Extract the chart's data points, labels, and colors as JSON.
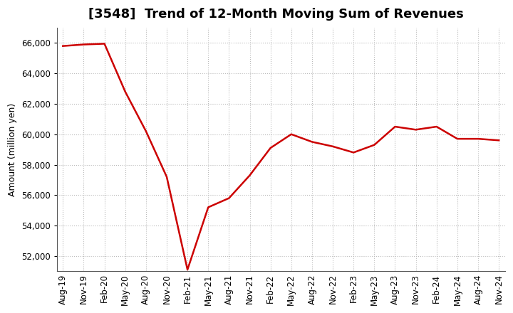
{
  "title": "[3548]  Trend of 12-Month Moving Sum of Revenues",
  "ylabel": "Amount (million yen)",
  "background_color": "#ffffff",
  "plot_bg_color": "#ffffff",
  "line_color": "#cc0000",
  "line_width": 1.8,
  "ylim": [
    51000,
    67000
  ],
  "yticks": [
    52000,
    54000,
    56000,
    58000,
    60000,
    62000,
    64000,
    66000
  ],
  "labels": [
    "Aug-19",
    "Nov-19",
    "Feb-20",
    "May-20",
    "Aug-20",
    "Nov-20",
    "Feb-21",
    "May-21",
    "Aug-21",
    "Nov-21",
    "Feb-22",
    "May-22",
    "Aug-22",
    "Nov-22",
    "Feb-23",
    "May-23",
    "Aug-23",
    "Nov-23",
    "Feb-24",
    "May-24",
    "Aug-24",
    "Nov-24"
  ],
  "values": [
    65800,
    65900,
    65950,
    62800,
    60200,
    57200,
    51100,
    55200,
    55800,
    57300,
    59100,
    60000,
    59500,
    59200,
    58800,
    59300,
    60500,
    60300,
    60500,
    59700,
    59700,
    59600
  ],
  "title_fontsize": 13,
  "axis_label_fontsize": 9,
  "tick_fontsize": 8.5,
  "grid_color": "#bbbbbb",
  "grid_style": "dotted"
}
